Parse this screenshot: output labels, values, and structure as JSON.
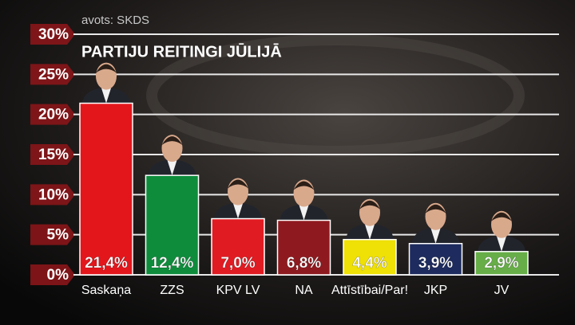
{
  "chart_data": {
    "type": "bar",
    "source": "avots: SKDS",
    "title": "PARTIJU REITINGI JŪLIJĀ",
    "categories": [
      "Saskaņa",
      "ZZS",
      "KPV LV",
      "NA",
      "Attīstībai/Par!",
      "JKP",
      "JV"
    ],
    "values": [
      21.4,
      12.4,
      7.0,
      6.8,
      4.4,
      3.9,
      2.9
    ],
    "value_labels": [
      "21,4%",
      "12,4%",
      "7,0%",
      "6,8%",
      "4,4%",
      "3,9%",
      "2,9%"
    ],
    "colors": [
      "#e3161c",
      "#0e8c3c",
      "#e11b22",
      "#8e1a1f",
      "#efe006",
      "#1d2b5e",
      "#67ae48"
    ],
    "ylim": [
      0,
      30
    ],
    "yticks": [
      {
        "value": 0,
        "label": "0%"
      },
      {
        "value": 5,
        "label": "5%"
      },
      {
        "value": 10,
        "label": "10%"
      },
      {
        "value": 15,
        "label": "15%"
      },
      {
        "value": 20,
        "label": "20%"
      },
      {
        "value": 25,
        "label": "25%"
      },
      {
        "value": 30,
        "label": "30%"
      }
    ],
    "grid": true
  }
}
